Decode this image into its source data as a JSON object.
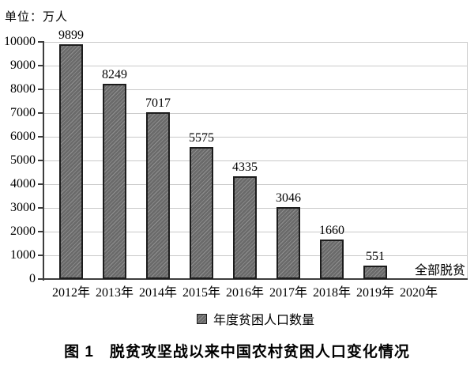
{
  "unit_label": "单位：万人",
  "caption": "图 1　脱贫攻坚战以来中国农村贫困人口变化情况",
  "legend": {
    "label": "年度贫困人口数量"
  },
  "chart_data": {
    "type": "bar",
    "title": "图 1 脱贫攻坚战以来中国农村贫困人口变化情况",
    "unit": "单位：万人",
    "categories": [
      "2012年",
      "2013年",
      "2014年",
      "2015年",
      "2016年",
      "2017年",
      "2018年",
      "2019年",
      "2020年"
    ],
    "values": [
      9899,
      8249,
      7017,
      5575,
      4335,
      3046,
      1660,
      551,
      0
    ],
    "bar_value_labels": [
      "9899",
      "8249",
      "7017",
      "5575",
      "4335",
      "3046",
      "1660",
      "551",
      ""
    ],
    "zero_value_annotation": "全部脱贫",
    "legend_entries": [
      "年度贫困人口数量"
    ],
    "legend_position": "bottom-center",
    "xlabel": "",
    "ylabel": "",
    "ylim": [
      0,
      10000
    ],
    "ytick_interval": 1000,
    "ytick_labels": [
      "0",
      "1000",
      "2000",
      "3000",
      "4000",
      "5000",
      "6000",
      "7000",
      "8000",
      "9000",
      "10000"
    ],
    "grid": true,
    "colors": {
      "bar_fill": "#6a6a6a",
      "bar_hatch_line": "#919191",
      "bar_border": "#1c1c1c",
      "gridline": "#c9c9c9",
      "axis": "#3d3d3d",
      "text": "#000000"
    }
  }
}
